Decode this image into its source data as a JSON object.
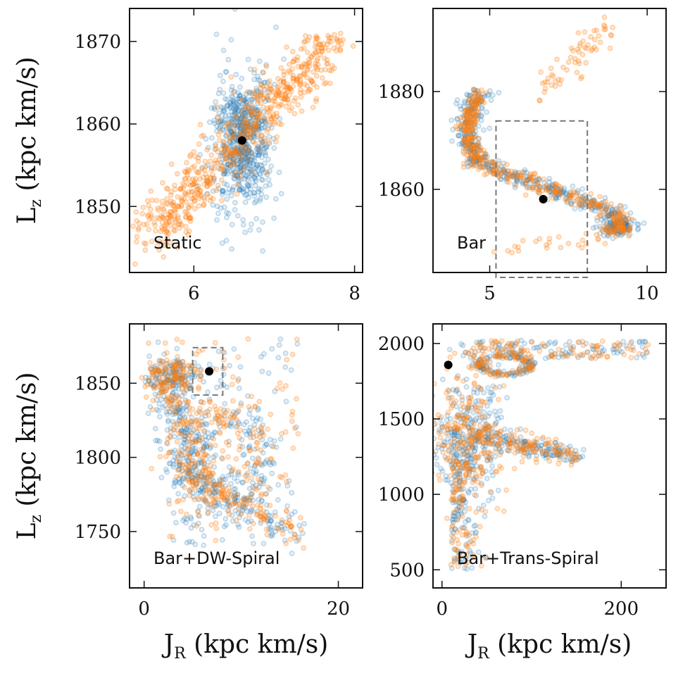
{
  "chart_data": [
    {
      "panel": "top-left",
      "type": "scatter",
      "label": "Static",
      "xlim": [
        5.2,
        8.1
      ],
      "ylim": [
        1842,
        1874
      ],
      "xticks": [
        6,
        8
      ],
      "yticks": [
        1850,
        1860,
        1870
      ],
      "x_tick_labels": [
        "6",
        "8"
      ],
      "y_tick_labels": [
        "1850",
        "1860",
        "1870"
      ],
      "xlabel": "",
      "ylabel": "L_z (kpc km/s)",
      "reference_point": {
        "x": 6.6,
        "y": 1858
      },
      "series": [
        {
          "color": "#1f77b4",
          "shape": "x",
          "center": [
            6.6,
            1858
          ],
          "x_spread": 0.55,
          "y_spread": 9,
          "count": 650
        },
        {
          "color": "#ff7f0e",
          "shape": "diag",
          "x_range": [
            5.3,
            7.8
          ],
          "y_range": [
            1845,
            1871
          ],
          "count": 650
        }
      ]
    },
    {
      "panel": "top-right",
      "type": "scatter",
      "label": "Bar",
      "xlim": [
        3.2,
        10.6
      ],
      "ylim": [
        1843,
        1897
      ],
      "xticks": [
        5,
        10
      ],
      "yticks": [
        1860,
        1880
      ],
      "x_tick_labels": [
        "5",
        "10"
      ],
      "y_tick_labels": [
        "1860",
        "1880"
      ],
      "xlabel": "",
      "ylabel": "",
      "reference_point": {
        "x": 6.7,
        "y": 1858
      },
      "box": {
        "x": [
          5.2,
          8.1
        ],
        "y": [
          1842,
          1874
        ]
      },
      "series": [
        {
          "color": "#1f77b4",
          "shape": "s-curve",
          "count": 520
        },
        {
          "color": "#ff7f0e",
          "shape": "s-curve",
          "count": 520
        }
      ]
    },
    {
      "panel": "bottom-left",
      "type": "scatter",
      "label": "Bar+DW-Spiral",
      "xlim": [
        -1.5,
        22.5
      ],
      "ylim": [
        1712,
        1890
      ],
      "xticks": [
        0,
        20
      ],
      "yticks": [
        1750,
        1800,
        1850
      ],
      "x_tick_labels": [
        "0",
        "20"
      ],
      "y_tick_labels": [
        "1750",
        "1800",
        "1850"
      ],
      "xlabel": "J_R (kpc km/s)",
      "ylabel": "L_z (kpc km/s)",
      "reference_point": {
        "x": 6.7,
        "y": 1858
      },
      "box": {
        "x": [
          5.0,
          8.1
        ],
        "y": [
          1842,
          1874
        ]
      },
      "series": [
        {
          "color": "#1f77b4",
          "shape": "loops",
          "count": 700
        },
        {
          "color": "#ff7f0e",
          "shape": "loops",
          "count": 550
        }
      ]
    },
    {
      "panel": "bottom-right",
      "type": "scatter",
      "label": "Bar+Trans-Spiral",
      "xlim": [
        -10,
        250
      ],
      "ylim": [
        380,
        2130
      ],
      "xticks": [
        0,
        200
      ],
      "yticks": [
        500,
        1000,
        1500,
        2000
      ],
      "x_tick_labels": [
        "0",
        "200"
      ],
      "y_tick_labels": [
        "500",
        "1000",
        "1500",
        "2000"
      ],
      "xlabel": "J_R (kpc km/s)",
      "ylabel": "",
      "reference_point": {
        "x": 7,
        "y": 1858
      },
      "series": [
        {
          "color": "#1f77b4",
          "shape": "cloud",
          "count": 700
        },
        {
          "color": "#ff7f0e",
          "shape": "cloud",
          "count": 600
        }
      ]
    }
  ]
}
